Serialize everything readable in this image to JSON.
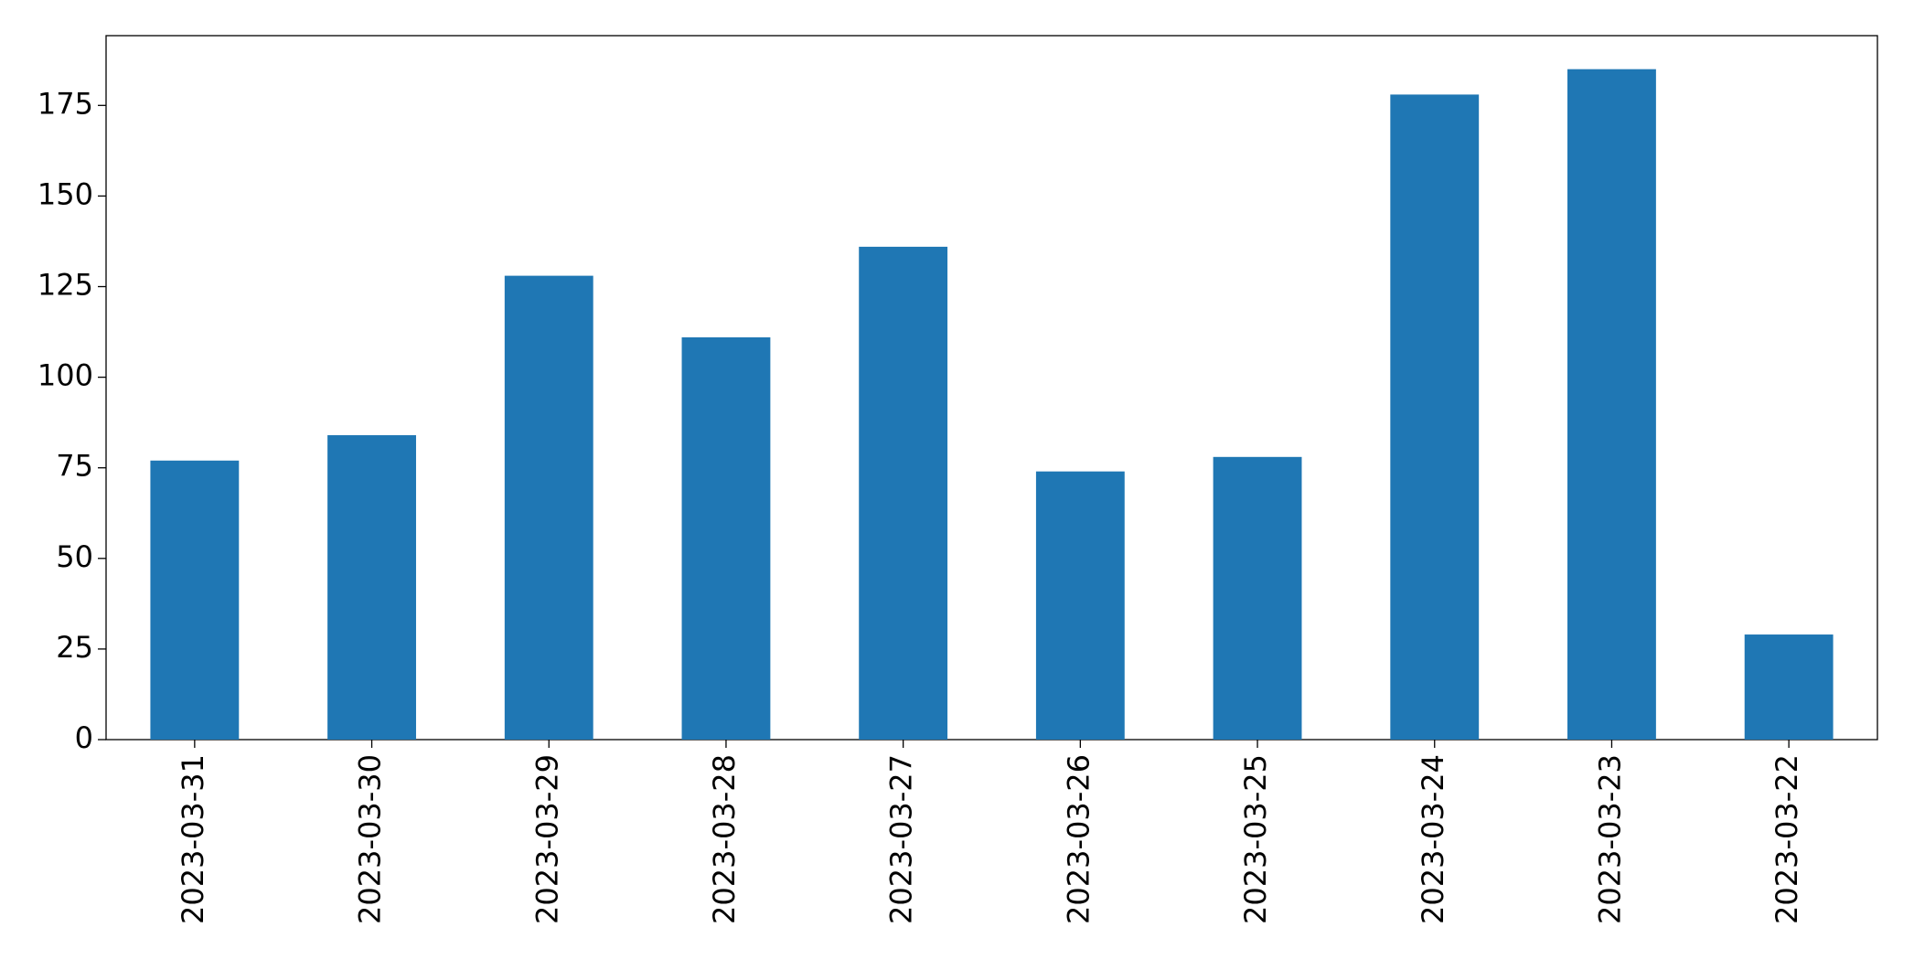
{
  "chart_data": {
    "type": "bar",
    "categories": [
      "2023-03-31",
      "2023-03-30",
      "2023-03-29",
      "2023-03-28",
      "2023-03-27",
      "2023-03-26",
      "2023-03-25",
      "2023-03-24",
      "2023-03-23",
      "2023-03-22"
    ],
    "values": [
      77,
      84,
      128,
      111,
      136,
      74,
      78,
      178,
      185,
      29
    ],
    "color": "#1f77b4",
    "ylim": [
      0,
      194.25
    ],
    "yticks": [
      0,
      25,
      50,
      75,
      100,
      125,
      150,
      175
    ],
    "grid": false
  }
}
